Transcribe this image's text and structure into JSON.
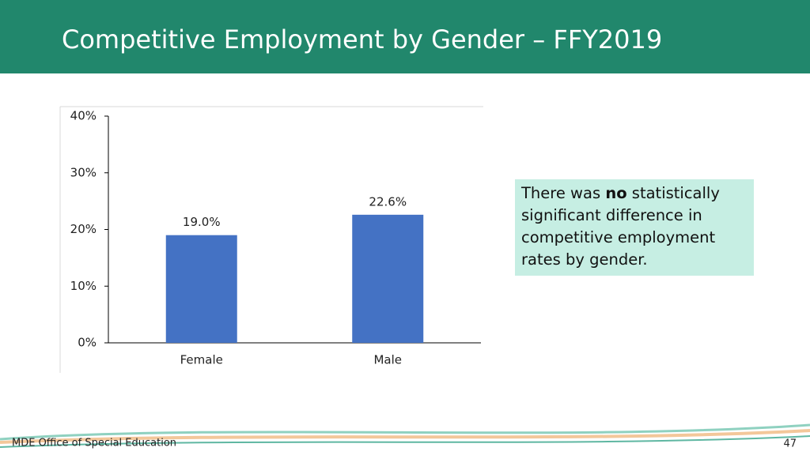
{
  "slide_title": "Competitive Employment by Gender – FFY2019",
  "chart_data": {
    "type": "bar",
    "categories": [
      "Female",
      "Male"
    ],
    "values": [
      19.0,
      22.6
    ],
    "value_labels": [
      "19.0%",
      "22.6%"
    ],
    "color": "#4472c4",
    "ylim": [
      0,
      40
    ],
    "yticks": [
      {
        "value": 0,
        "label": "0%"
      },
      {
        "value": 10,
        "label": "10%"
      },
      {
        "value": 20,
        "label": "20%"
      },
      {
        "value": 30,
        "label": "30%"
      },
      {
        "value": 40,
        "label": "40%"
      }
    ],
    "grid": false
  },
  "callout": {
    "parts": [
      "There was ",
      "no",
      " statistically significant difference in competitive employment rates by gender."
    ]
  },
  "footer": {
    "left": "MDE Office of Special Education",
    "page_number": "47"
  }
}
